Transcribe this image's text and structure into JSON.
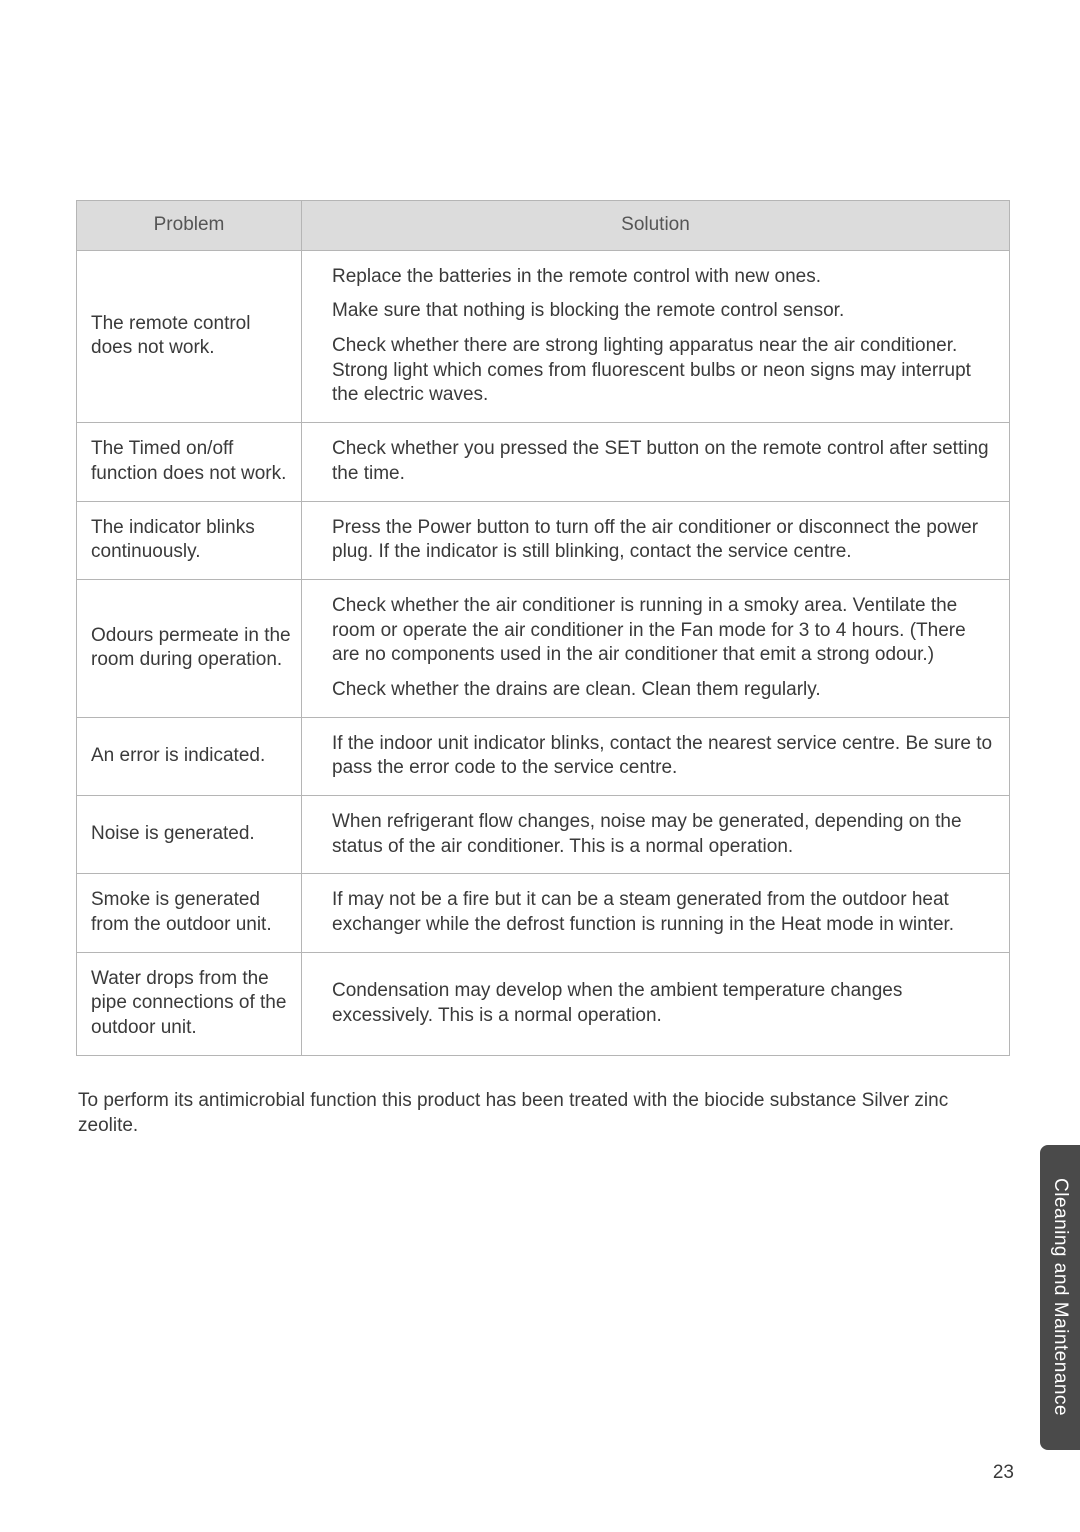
{
  "table": {
    "header_problem": "Problem",
    "header_solution": "Solution",
    "header_bg": "#dcdcdc",
    "border_color": "#b5b5b5",
    "rows": [
      {
        "problem": "The remote control does not work.",
        "solutions": [
          "Replace the batteries in the remote control with new ones.",
          "Make sure that nothing is blocking the remote control sensor.",
          "Check whether there are strong lighting apparatus near the air conditioner. Strong light which comes from fluorescent bulbs or neon signs may interrupt the electric waves."
        ]
      },
      {
        "problem": "The Timed on/off function does not work.",
        "solutions": [
          "Check whether you pressed the SET button on the remote control after setting the time."
        ]
      },
      {
        "problem": "The indicator blinks continuously.",
        "solutions": [
          "Press the Power button to turn off the air conditioner or disconnect the power plug. If the indicator is still blinking, contact the service centre."
        ]
      },
      {
        "problem": "Odours permeate in the room during operation.",
        "solutions": [
          "Check whether the air conditioner is running in a smoky area. Ventilate the room or operate the air conditioner in the Fan mode for 3 to 4 hours. (There are no components used in the air conditioner that emit a strong odour.)",
          "Check whether the drains are clean. Clean them regularly."
        ]
      },
      {
        "problem": "An error is indicated.",
        "solutions": [
          "If the indoor unit indicator blinks, contact the nearest service centre. Be sure to pass the error code to the service centre."
        ]
      },
      {
        "problem": "Noise is generated.",
        "solutions": [
          "When refrigerant flow changes, noise may be generated, depending on the status of the air conditioner. This is a normal operation."
        ]
      },
      {
        "problem": "Smoke is generated from the outdoor unit.",
        "solutions": [
          "If may not be a fire but it can be a steam generated from the outdoor heat exchanger while the defrost function is running in the Heat mode in winter."
        ]
      },
      {
        "problem": "Water drops from the pipe connections of the outdoor unit.",
        "solutions": [
          "Condensation may develop when the ambient temperature changes excessively. This is a normal operation."
        ]
      }
    ]
  },
  "footer_note": "To perform its antimicrobial function this product has been treated with the biocide substance Silver zinc zeolite.",
  "side_tab": {
    "label": "Cleaning and Maintenance",
    "bg": "#4a4a4a",
    "text_color": "#ffffff"
  },
  "page_number": "23"
}
